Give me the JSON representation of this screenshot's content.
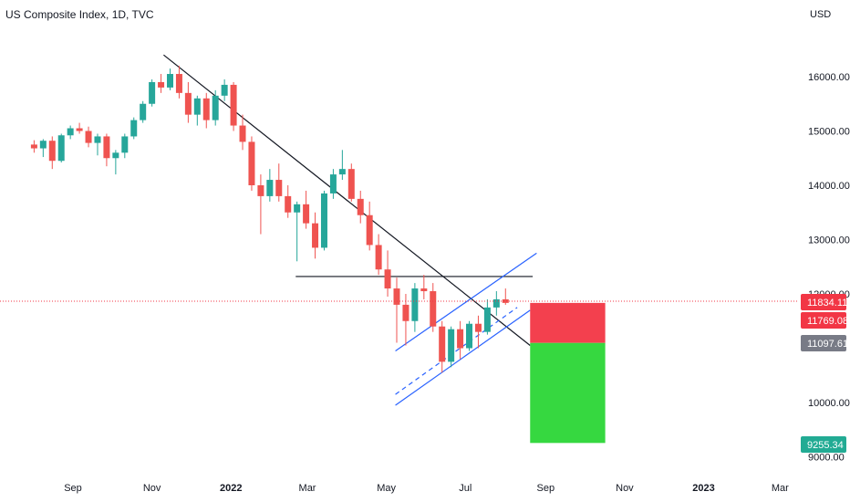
{
  "chart_data": {
    "type": "candlestick",
    "title": "US Composite Index, 1D, TVC",
    "currency_label": "USD",
    "y_axis": {
      "range": [
        8850,
        16900
      ],
      "ticks": [
        {
          "value": 16000,
          "label": "16000.00"
        },
        {
          "value": 15000,
          "label": "15000.00"
        },
        {
          "value": 14000,
          "label": "14000.00"
        },
        {
          "value": 13000,
          "label": "13000.00"
        },
        {
          "value": 12000,
          "label": "12000.00"
        },
        {
          "value": 10000,
          "label": "10000.00"
        },
        {
          "value": 9000,
          "label": "9000.00"
        }
      ]
    },
    "x_axis": {
      "ticks": [
        {
          "date": "2021-09-01",
          "label": "Sep",
          "bold": false
        },
        {
          "date": "2021-11-01",
          "label": "Nov",
          "bold": false
        },
        {
          "date": "2022-01-01",
          "label": "2022",
          "bold": true
        },
        {
          "date": "2022-03-01",
          "label": "Mar",
          "bold": false
        },
        {
          "date": "2022-05-01",
          "label": "May",
          "bold": false
        },
        {
          "date": "2022-07-01",
          "label": "Jul",
          "bold": false
        },
        {
          "date": "2022-09-01",
          "label": "Sep",
          "bold": false
        },
        {
          "date": "2022-11-01",
          "label": "Nov",
          "bold": false
        },
        {
          "date": "2023-01-01",
          "label": "2023",
          "bold": true
        },
        {
          "date": "2023-03-01",
          "label": "Mar",
          "bold": false
        }
      ]
    },
    "price_markers": [
      {
        "value": 11834.11,
        "label": "11834.11",
        "color": "#f23645"
      },
      {
        "value": 11769.08,
        "label": "11769.08",
        "color": "#f23645"
      },
      {
        "value": 11097.61,
        "label": "11097.61",
        "color": "#787b86"
      },
      {
        "value": 9255.34,
        "label": "9255.34",
        "color": "#22ab94"
      }
    ],
    "candles": [
      [
        "2021-08-02",
        14750,
        14830,
        14600,
        14680
      ],
      [
        "2021-08-09",
        14680,
        14850,
        14520,
        14820
      ],
      [
        "2021-08-16",
        14820,
        14900,
        14300,
        14450
      ],
      [
        "2021-08-23",
        14450,
        14950,
        14420,
        14920
      ],
      [
        "2021-08-30",
        14920,
        15100,
        14850,
        15050
      ],
      [
        "2021-09-06",
        15050,
        15150,
        14950,
        15000
      ],
      [
        "2021-09-13",
        15000,
        15080,
        14700,
        14780
      ],
      [
        "2021-09-20",
        14780,
        14950,
        14550,
        14900
      ],
      [
        "2021-09-27",
        14900,
        14950,
        14350,
        14500
      ],
      [
        "2021-10-04",
        14500,
        14650,
        14200,
        14600
      ],
      [
        "2021-10-11",
        14600,
        14950,
        14500,
        14900
      ],
      [
        "2021-10-18",
        14900,
        15250,
        14850,
        15200
      ],
      [
        "2021-10-25",
        15200,
        15550,
        15150,
        15500
      ],
      [
        "2021-11-01",
        15500,
        15950,
        15450,
        15900
      ],
      [
        "2021-11-08",
        15900,
        16050,
        15700,
        15800
      ],
      [
        "2021-11-15",
        15800,
        16150,
        15750,
        16050
      ],
      [
        "2021-11-22",
        16050,
        16200,
        15600,
        15700
      ],
      [
        "2021-11-29",
        15700,
        15900,
        15150,
        15300
      ],
      [
        "2021-12-06",
        15300,
        15650,
        15100,
        15600
      ],
      [
        "2021-12-13",
        15600,
        15700,
        15050,
        15200
      ],
      [
        "2021-12-20",
        15200,
        15750,
        15100,
        15650
      ],
      [
        "2021-12-27",
        15650,
        15950,
        15550,
        15850
      ],
      [
        "2022-01-03",
        15850,
        15900,
        15000,
        15100
      ],
      [
        "2022-01-10",
        15100,
        15300,
        14650,
        14800
      ],
      [
        "2022-01-17",
        14800,
        14900,
        13900,
        14000
      ],
      [
        "2022-01-24",
        14000,
        14200,
        13100,
        13800
      ],
      [
        "2022-01-31",
        13800,
        14300,
        13700,
        14100
      ],
      [
        "2022-02-07",
        14100,
        14400,
        13700,
        13800
      ],
      [
        "2022-02-14",
        13800,
        14000,
        13400,
        13500
      ],
      [
        "2022-02-21",
        13500,
        13700,
        12600,
        13650
      ],
      [
        "2022-02-28",
        13650,
        13900,
        13200,
        13300
      ],
      [
        "2022-03-07",
        13300,
        13500,
        12650,
        12850
      ],
      [
        "2022-03-14",
        12850,
        13900,
        12800,
        13850
      ],
      [
        "2022-03-21",
        13850,
        14300,
        13750,
        14200
      ],
      [
        "2022-03-28",
        14200,
        14650,
        14100,
        14300
      ],
      [
        "2022-04-04",
        14300,
        14400,
        13700,
        13750
      ],
      [
        "2022-04-11",
        13750,
        13900,
        13300,
        13450
      ],
      [
        "2022-04-18",
        13450,
        13700,
        12800,
        12900
      ],
      [
        "2022-04-25",
        12900,
        13100,
        12350,
        12450
      ],
      [
        "2022-05-02",
        12450,
        12800,
        11950,
        12100
      ],
      [
        "2022-05-09",
        12100,
        12300,
        11100,
        11800
      ],
      [
        "2022-05-16",
        11800,
        12000,
        11050,
        11500
      ],
      [
        "2022-05-23",
        11500,
        12200,
        11300,
        12100
      ],
      [
        "2022-05-30",
        12100,
        12350,
        11900,
        12050
      ],
      [
        "2022-06-06",
        12050,
        12200,
        11300,
        11400
      ],
      [
        "2022-06-13",
        11400,
        11500,
        10550,
        10750
      ],
      [
        "2022-06-20",
        10750,
        11400,
        10650,
        11350
      ],
      [
        "2022-06-27",
        11350,
        11500,
        10800,
        11000
      ],
      [
        "2022-07-04",
        11000,
        11500,
        10950,
        11450
      ],
      [
        "2022-07-11",
        11450,
        11600,
        11000,
        11300
      ],
      [
        "2022-07-18",
        11300,
        11900,
        11250,
        11750
      ],
      [
        "2022-07-25",
        11750,
        12050,
        11600,
        11900
      ],
      [
        "2022-08-01",
        11900,
        12100,
        11800,
        11834
      ]
    ],
    "drawings": [
      {
        "type": "trendline",
        "from": [
          "2021-11-10",
          16400
        ],
        "to": [
          "2022-08-20",
          11050
        ],
        "color": "#131722"
      },
      {
        "type": "horizontal-segment",
        "from": [
          "2022-02-20",
          12320
        ],
        "to": [
          "2022-08-22",
          12320
        ],
        "color": "#131722"
      },
      {
        "type": "channel-upper",
        "from": [
          "2022-05-08",
          10950
        ],
        "to": [
          "2022-08-25",
          12750
        ],
        "color": "#2962ff"
      },
      {
        "type": "channel-mid",
        "from": [
          "2022-05-08",
          10150
        ],
        "to": [
          "2022-08-10",
          11750
        ],
        "color": "#2962ff",
        "dashed": true
      },
      {
        "type": "channel-lower",
        "from": [
          "2022-05-08",
          9950
        ],
        "to": [
          "2022-08-20",
          11700
        ],
        "color": "#2962ff"
      },
      {
        "type": "position-stop",
        "from": [
          "2022-08-20",
          11834
        ],
        "to": [
          "2022-10-17",
          11097
        ],
        "color": "#f23645"
      },
      {
        "type": "position-target",
        "from": [
          "2022-08-20",
          11097
        ],
        "to": [
          "2022-10-17",
          9255
        ],
        "color": "#2bd636"
      }
    ],
    "colors": {
      "up": "#26a69a",
      "down": "#ef5350"
    }
  }
}
